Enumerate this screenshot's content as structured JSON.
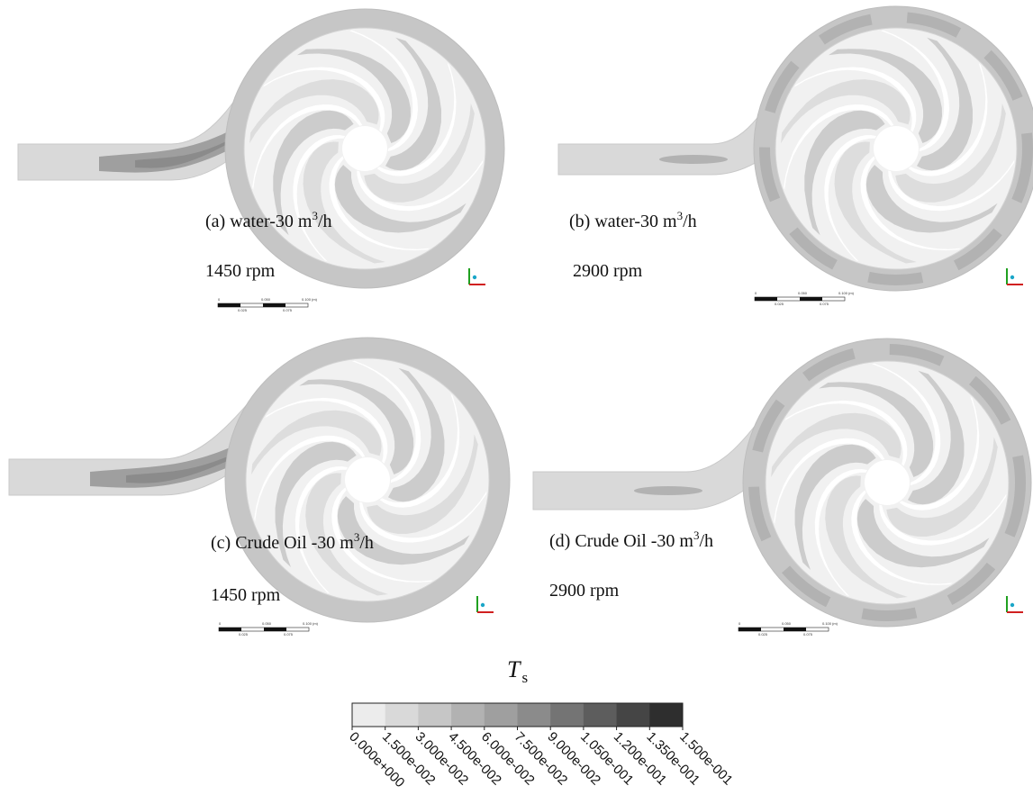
{
  "panels": [
    {
      "title": "(a) water-30 m",
      "exp": "3",
      "unit": "/h",
      "speed": "1450 rpm"
    },
    {
      "title": "(b) water-30 m",
      "exp": "3",
      "unit": "/h",
      "speed": "2900 rpm"
    },
    {
      "title": "(c) Crude Oil -30 m",
      "exp": "3",
      "unit": "/h",
      "speed": "1450 rpm"
    },
    {
      "title": "(d) Crude Oil -30 m",
      "exp": "3",
      "unit": "/h",
      "speed": "2900 rpm"
    }
  ],
  "scale_bar": {
    "labels": [
      "0",
      "0.050",
      "0.100",
      "(m)",
      "0.025",
      "0.075"
    ]
  },
  "colorbar": {
    "symbol": "T",
    "subscript": "s",
    "ticks": [
      "0.000e+000",
      "1.500e-002",
      "3.000e-002",
      "4.500e-002",
      "6.000e-002",
      "7.500e-002",
      "9.000e-002",
      "1.050e-001",
      "1.200e-001",
      "1.350e-001",
      "1.500e-001"
    ],
    "colors": [
      "#ececec",
      "#d9d9d9",
      "#c6c6c6",
      "#b2b2b2",
      "#9f9f9f",
      "#8b8b8b",
      "#747474",
      "#5d5d5d",
      "#454545",
      "#2e2e2e"
    ]
  },
  "palette": {
    "level1": "#ececec",
    "level2": "#d9d9d9",
    "level3": "#c6c6c6",
    "level4": "#b2b2b2",
    "level5": "#9f9f9f",
    "level6": "#8b8b8b",
    "axis_x": "#d02020",
    "axis_y": "#20a020",
    "axis_z": "#1aa6c8"
  }
}
